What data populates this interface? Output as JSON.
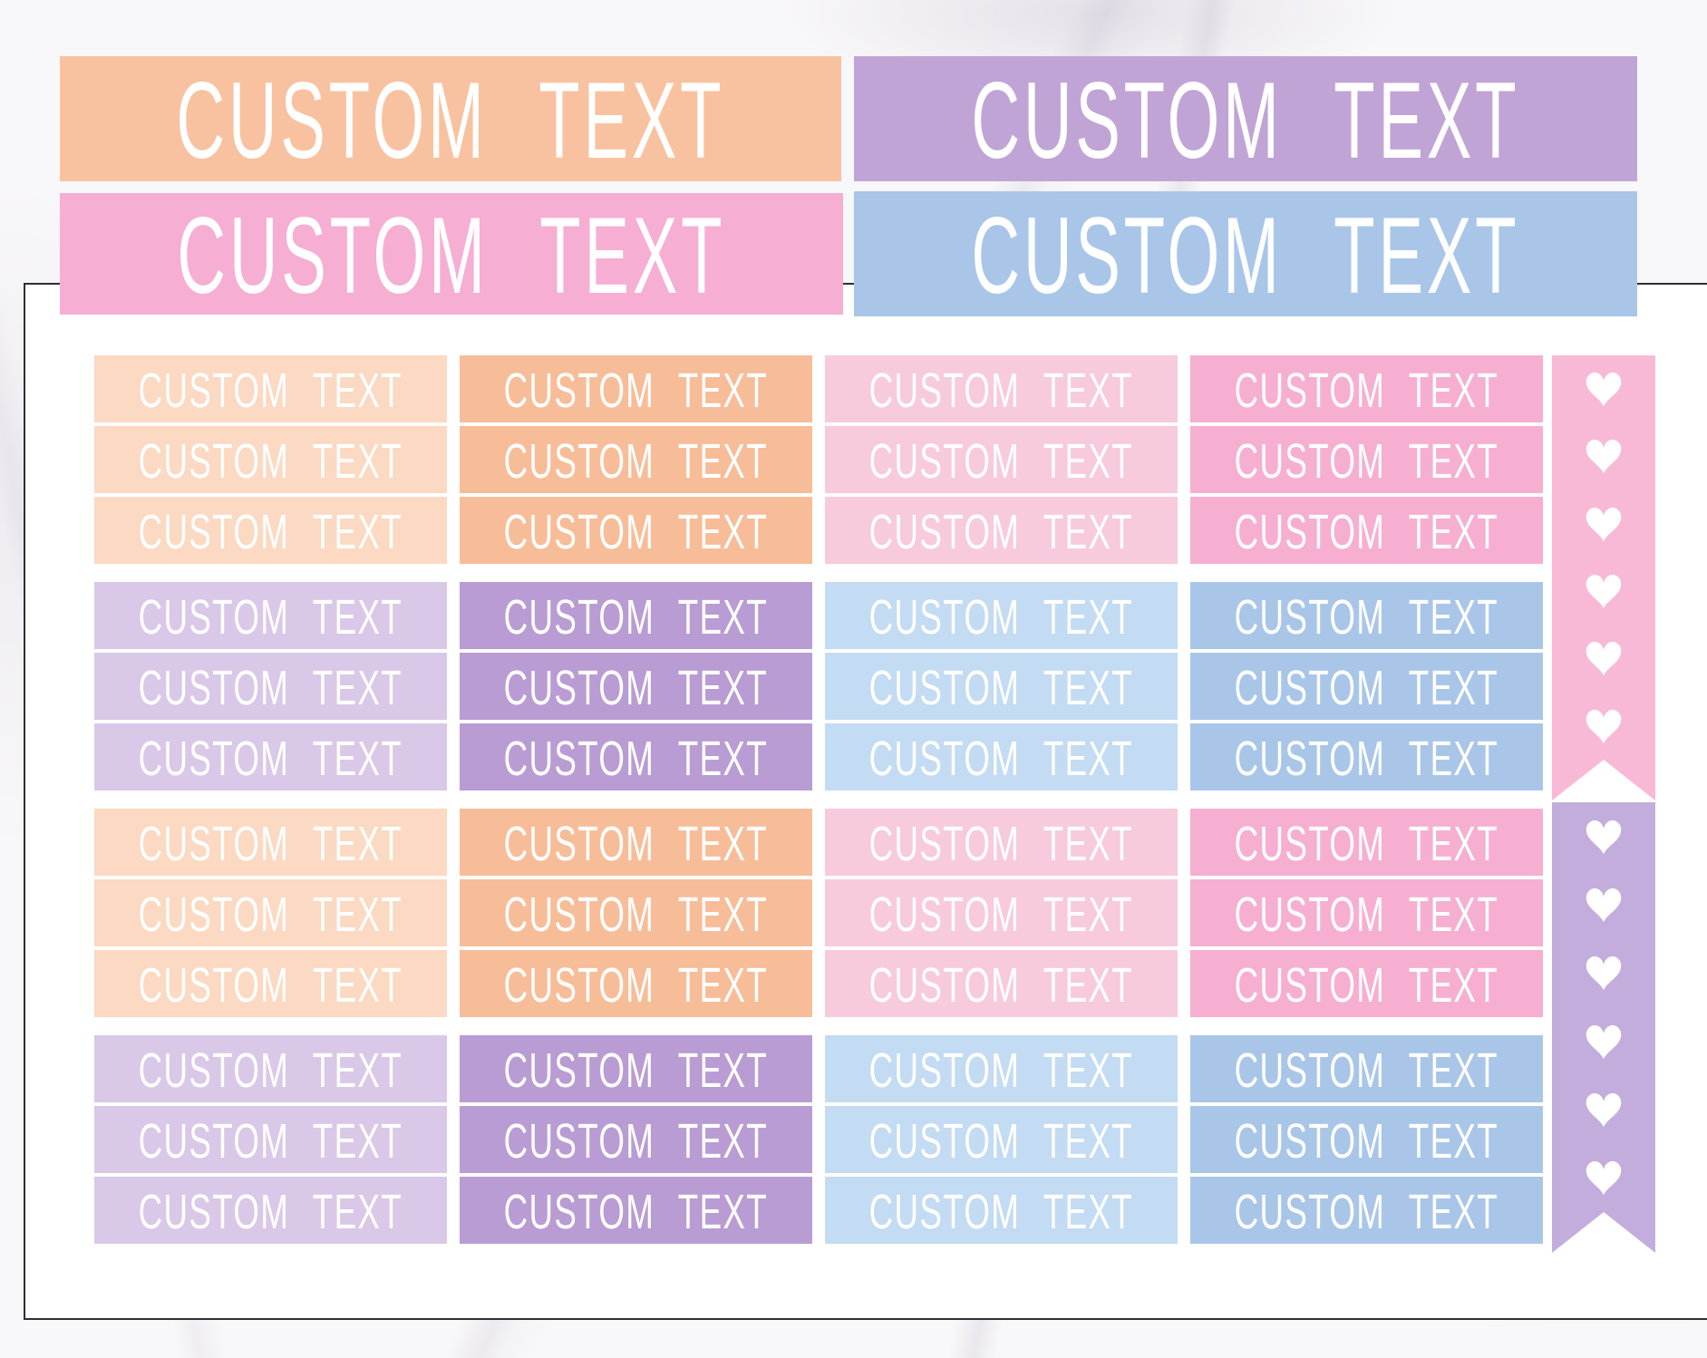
{
  "title": "Pastel custom text planner sticker sheet on marble background",
  "colors": {
    "marble_base": "#f8f7f9",
    "sheet_white": "#ffffff",
    "sheet_border": "#2f2f2f",
    "label_text": "#ffffff",
    "header_peach": "#f8c2a0",
    "header_purple": "#c1a4d6",
    "header_pink": "#f6aed3",
    "header_blue": "#a9c6e9",
    "flag_pink": "#f8b9d7",
    "flag_purple": "#c3addc"
  },
  "headers": [
    {
      "name": "header-bar-peach",
      "label": "CUSTOM TEXT",
      "color": "#f8c2a0"
    },
    {
      "name": "header-bar-purple",
      "label": "CUSTOM TEXT",
      "color": "#c1a4d6"
    },
    {
      "name": "header-bar-pink",
      "label": "CUSTOM TEXT",
      "color": "#f6aed3"
    },
    {
      "name": "header-bar-blue",
      "label": "CUSTOM TEXT",
      "color": "#a9c6e9"
    }
  ],
  "grid": {
    "label": "CUSTOM TEXT",
    "rows_per_group": 3,
    "columns_per_row": 4,
    "groups": [
      {
        "name": "peach-pink-group-1",
        "colors": [
          "#fbd9c2",
          "#f7bd98",
          "#f8cadd",
          "#f6afd1"
        ]
      },
      {
        "name": "purple-blue-group-1",
        "colors": [
          "#d9c8e7",
          "#b99cd3",
          "#c3dbf3",
          "#a9c6e9"
        ]
      },
      {
        "name": "peach-pink-group-2",
        "colors": [
          "#fbd9c2",
          "#f7bd98",
          "#f8cadd",
          "#f6afd1"
        ]
      },
      {
        "name": "purple-blue-group-2",
        "colors": [
          "#d9c8e7",
          "#b99cd3",
          "#c3dbf3",
          "#a9c6e9"
        ]
      }
    ]
  },
  "flags": [
    {
      "name": "pink-heart-checklist-flag",
      "color": "#f8b9d7",
      "heart_count": 6
    },
    {
      "name": "purple-heart-checklist-flag",
      "color": "#c3addc",
      "heart_count": 6
    }
  ]
}
